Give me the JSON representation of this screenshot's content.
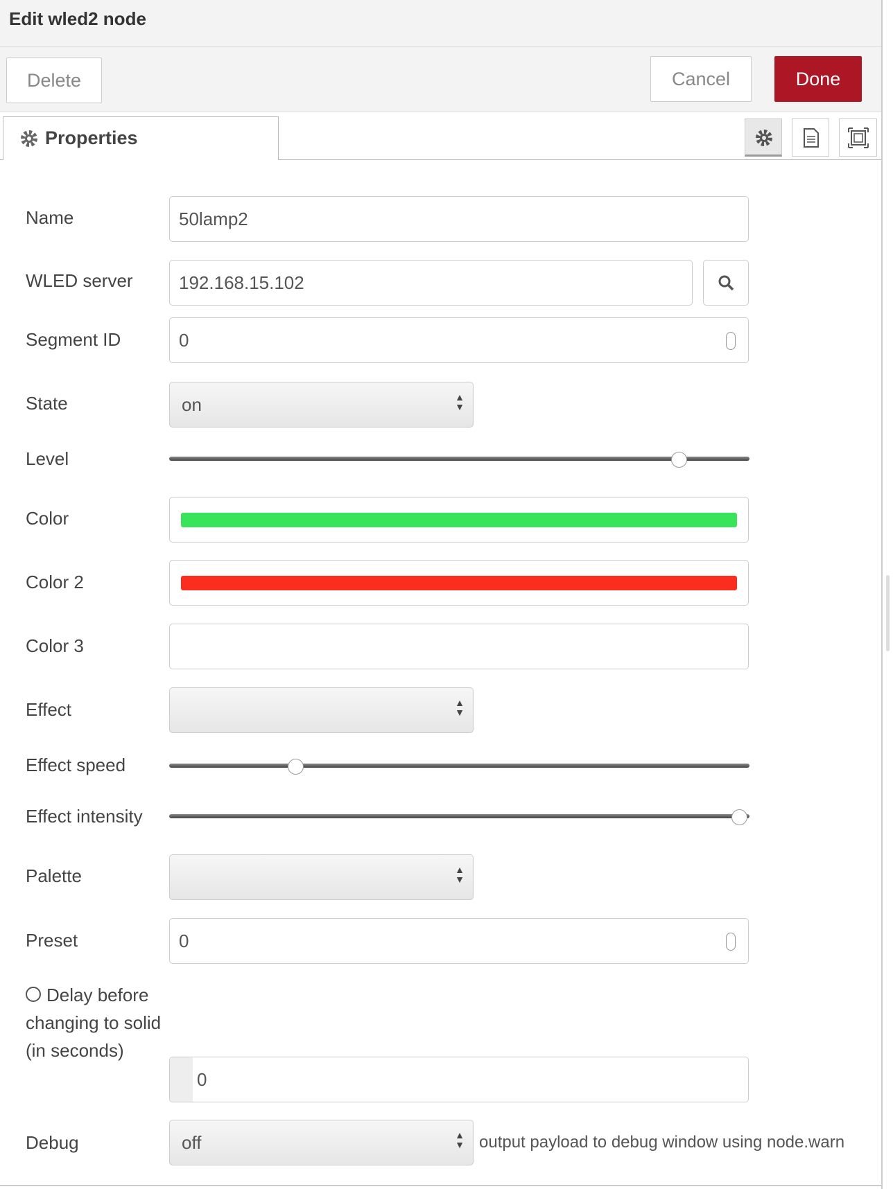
{
  "header": {
    "title": "Edit wled2 node"
  },
  "buttons": {
    "delete": "Delete",
    "cancel": "Cancel",
    "done": "Done"
  },
  "tab": {
    "label": "Properties"
  },
  "form": {
    "fields": [
      {
        "label": "Name",
        "value": "50lamp2"
      },
      {
        "label": "WLED server",
        "value": "192.168.15.102"
      },
      {
        "label": "Segment ID",
        "value": 0
      },
      {
        "label": "State",
        "value": "on"
      },
      {
        "label": "Level"
      },
      {
        "label": "Color",
        "color": "#39e35a"
      },
      {
        "label": "Color 2",
        "color": "#fb2d1f"
      },
      {
        "label": "Color 3"
      },
      {
        "label": "Effect"
      },
      {
        "label": "Effect speed"
      },
      {
        "label": "Effect intensity"
      },
      {
        "label": "Palette"
      },
      {
        "label": "Preset",
        "value": 0
      },
      {
        "label": "Delay before changing to solid (in seconds)",
        "value": 0
      },
      {
        "label": "Debug",
        "value": "off",
        "note": "output payload to debug window using node.warn"
      }
    ]
  }
}
